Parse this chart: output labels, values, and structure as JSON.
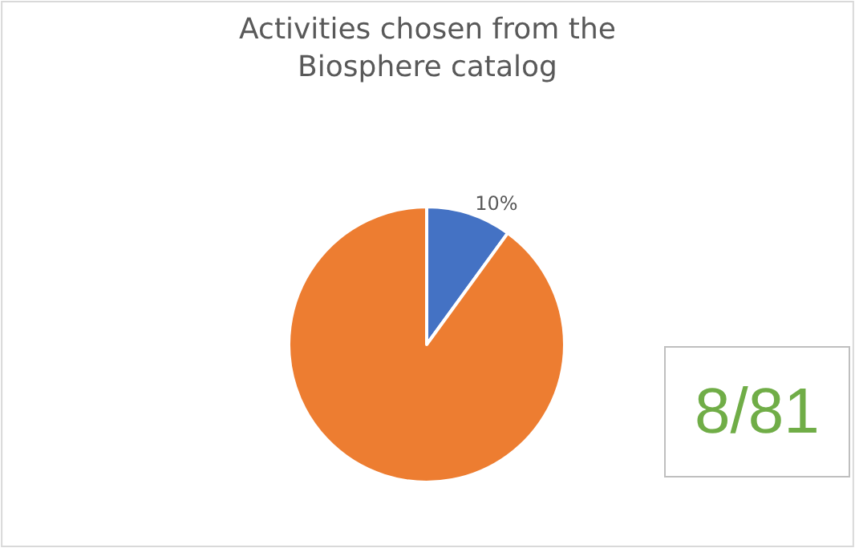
{
  "chart_data": {
    "type": "pie",
    "title": "Activities chosen from the\nBiosphere catalog",
    "categories": [
      null,
      null
    ],
    "values": [
      10,
      90
    ],
    "colors": [
      "#4472c4",
      "#ed7d31"
    ],
    "value_labels": [
      "10%",
      null
    ],
    "annotations": [
      "8/81"
    ],
    "legend": false
  }
}
